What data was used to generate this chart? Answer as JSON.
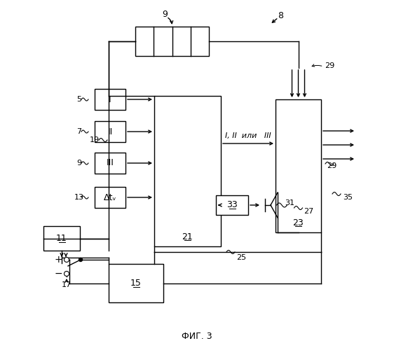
{
  "bg_color": "#ffffff",
  "line_color": "#000000",
  "label_8": "8",
  "label_9_top": "9",
  "label_5": "5",
  "label_7": "7",
  "label_9b": "9",
  "label_13": "13",
  "label_11": "11",
  "label_15": "15",
  "label_17": "17",
  "label_19": "19",
  "label_21": "21",
  "label_23": "23",
  "label_25": "25",
  "label_27": "27",
  "label_29": "29",
  "label_31": "31",
  "label_33": "33",
  "label_35": "35",
  "text_I": "I",
  "text_II": "II",
  "text_III": "III",
  "text_dt": "Δtᵥ",
  "text_middle": "I, II  или   III",
  "text_fig": "ФИГ. 3"
}
